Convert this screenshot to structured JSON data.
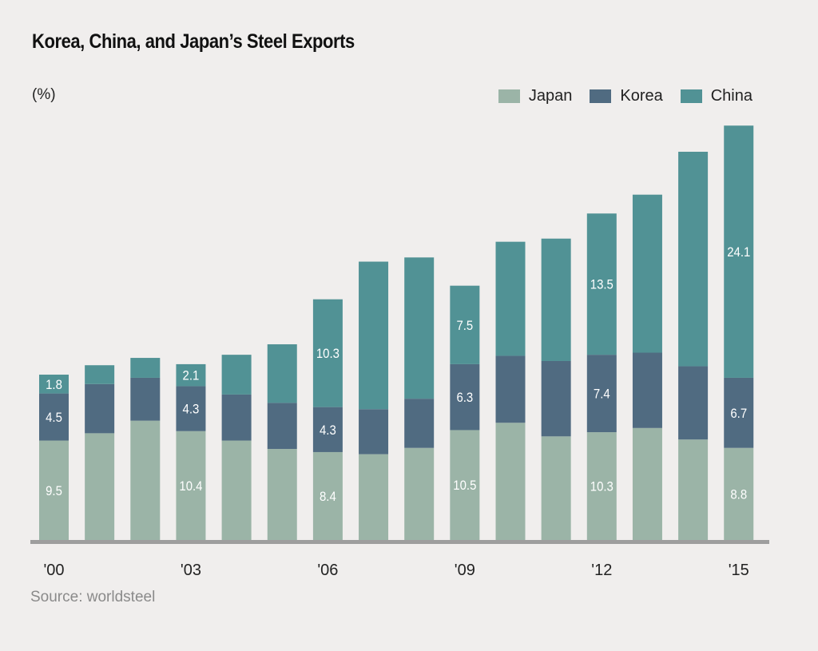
{
  "title": "Korea, China, and Japan’s Steel Exports",
  "unit_label": "(%)",
  "source": "Source: worldsteel",
  "chart_data": {
    "type": "bar",
    "stacked": true,
    "title": "Korea, China, and Japan’s Steel Exports",
    "ylabel": "(%)",
    "xlabel": "",
    "categories": [
      "'00",
      "'01",
      "'02",
      "'03",
      "'04",
      "'05",
      "'06",
      "'07",
      "'08",
      "'09",
      "'10",
      "'11",
      "'12",
      "'13",
      "'14",
      "'15"
    ],
    "tick_labels": [
      "'00",
      "",
      "",
      "'03",
      "",
      "",
      "'06",
      "",
      "",
      "'09",
      "",
      "",
      "'12",
      "",
      "",
      "'15"
    ],
    "legend_position": "top-right",
    "grid": false,
    "ylim": [
      0,
      40
    ],
    "series": [
      {
        "name": "Japan",
        "color": "#9bb4a7",
        "values": [
          9.5,
          10.2,
          11.4,
          10.4,
          9.5,
          8.7,
          8.4,
          8.2,
          8.8,
          10.5,
          11.2,
          9.9,
          10.3,
          10.7,
          9.6,
          8.8
        ],
        "labels": [
          "9.5",
          "",
          "",
          "10.4",
          "",
          "",
          "8.4",
          "",
          "",
          "10.5",
          "",
          "",
          "10.3",
          "",
          "",
          "8.8"
        ]
      },
      {
        "name": "Korea",
        "color": "#506b81",
        "values": [
          4.5,
          4.7,
          4.1,
          4.3,
          4.4,
          4.4,
          4.3,
          4.3,
          4.7,
          6.3,
          6.4,
          7.2,
          7.4,
          7.2,
          7.0,
          6.7
        ],
        "labels": [
          "4.5",
          "",
          "",
          "4.3",
          "",
          "",
          "4.3",
          "",
          "",
          "6.3",
          "",
          "",
          "7.4",
          "",
          "",
          "6.7"
        ]
      },
      {
        "name": "China",
        "color": "#519295",
        "values": [
          1.8,
          1.8,
          1.9,
          2.1,
          3.8,
          5.6,
          10.3,
          14.1,
          13.5,
          7.5,
          10.9,
          11.7,
          13.5,
          15.1,
          20.5,
          24.1
        ],
        "labels": [
          "1.8",
          "",
          "",
          "2.1",
          "",
          "",
          "10.3",
          "",
          "",
          "7.5",
          "",
          "",
          "13.5",
          "",
          "",
          "24.1"
        ]
      }
    ]
  }
}
